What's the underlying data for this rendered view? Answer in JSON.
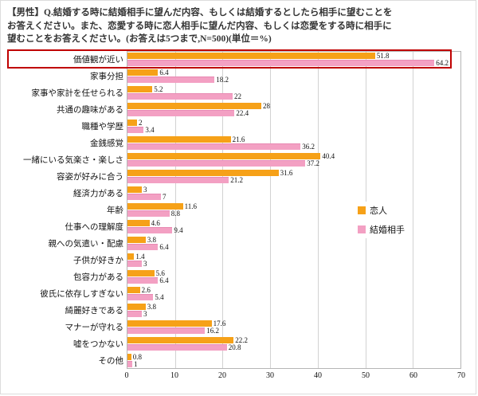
{
  "title": {
    "line1": "【男性】Q.結婚する時に結婚相手に望んだ内容、もしくは結婚するとしたら相手に望むことを",
    "line2": "お答えください。また、恋愛する時に恋人相手に望んだ内容、もしくは恋愛をする時に相手に",
    "line3": "望むことをお答えください。(お答えは5つまで,N=500)(単位＝%)"
  },
  "chart_data": {
    "type": "bar",
    "orientation": "horizontal",
    "unit": "%",
    "sample_note": "N=500",
    "categories": [
      "価値観が近い",
      "家事分担",
      "家事や家計を任せられる",
      "共通の趣味がある",
      "職種や学歴",
      "金銭感覚",
      "一緒にいる気楽さ・楽しさ",
      "容姿が好みに合う",
      "経済力がある",
      "年齢",
      "仕事への理解度",
      "親への気遣い・配慮",
      "子供が好きか",
      "包容力がある",
      "彼氏に依存しすぎない",
      "綺麗好きである",
      "マナーが守れる",
      "嘘をつかない",
      "その他"
    ],
    "series": [
      {
        "name": "恋人",
        "color": "#F6A118",
        "values": [
          51.8,
          6.4,
          5.2,
          28,
          2,
          21.6,
          40.4,
          31.6,
          3,
          11.6,
          4.6,
          3.8,
          1.4,
          5.6,
          2.6,
          3.8,
          17.6,
          22.2,
          0.8
        ]
      },
      {
        "name": "結婚相手",
        "color": "#F3A0C3",
        "values": [
          64.2,
          18.2,
          22,
          22.4,
          3.4,
          36.2,
          37.2,
          21.2,
          7,
          8.8,
          9.4,
          6.4,
          3,
          6.4,
          5.4,
          3,
          16.2,
          20.8,
          1
        ]
      }
    ],
    "xlim": [
      0,
      70
    ],
    "xticks": [
      0,
      10,
      20,
      30,
      40,
      50,
      60,
      70
    ],
    "grid": true,
    "legend_position": "middle-right",
    "highlight": {
      "category": "価値観が近い",
      "style": "red-box",
      "color": "#c00000"
    }
  }
}
